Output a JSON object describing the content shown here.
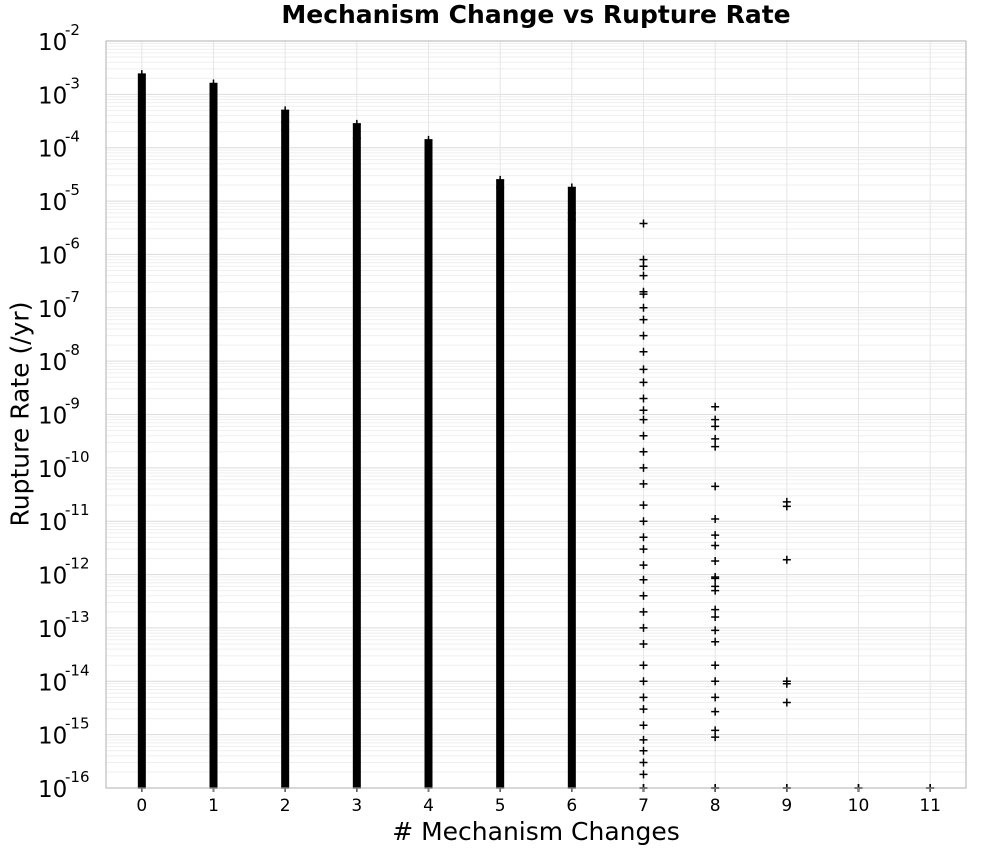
{
  "chart_data": {
    "type": "scatter",
    "title": "Mechanism Change vs Rupture Rate",
    "xlabel": "# Mechanism Changes",
    "ylabel": "Rupture Rate (/yr)",
    "x_ticks": [
      "0",
      "1",
      "2",
      "3",
      "4",
      "5",
      "6",
      "7",
      "8",
      "9",
      "10",
      "11"
    ],
    "xlim": [
      -0.5,
      11.5
    ],
    "y_scale": "log",
    "ylim": [
      1e-16,
      0.01
    ],
    "y_tick_labels": [
      {
        "base": "10",
        "exp": "-16"
      },
      {
        "base": "10",
        "exp": "-15"
      },
      {
        "base": "10",
        "exp": "-14"
      },
      {
        "base": "10",
        "exp": "-13"
      },
      {
        "base": "10",
        "exp": "-12"
      },
      {
        "base": "10",
        "exp": "-11"
      },
      {
        "base": "10",
        "exp": "-10"
      },
      {
        "base": "10",
        "exp": "-9"
      },
      {
        "base": "10",
        "exp": "-8"
      },
      {
        "base": "10",
        "exp": "-7"
      },
      {
        "base": "10",
        "exp": "-6"
      },
      {
        "base": "10",
        "exp": "-5"
      },
      {
        "base": "10",
        "exp": "-4"
      },
      {
        "base": "10",
        "exp": "-3"
      },
      {
        "base": "10",
        "exp": "-2"
      }
    ],
    "grid": true,
    "marker": "plus",
    "marker_color": "#000000",
    "columns": [
      {
        "x": 0,
        "max": 0.0024,
        "min": 1e-16,
        "dense_down_to": 1e-16,
        "outliers": []
      },
      {
        "x": 1,
        "max": 0.0016,
        "min": 1e-16,
        "dense_down_to": 1e-16,
        "outliers": [
          0.0006,
          0.0004
        ]
      },
      {
        "x": 2,
        "max": 0.0005,
        "min": 1e-16,
        "dense_down_to": 1e-16,
        "outliers": [
          0.0003,
          0.00022
        ]
      },
      {
        "x": 3,
        "max": 0.00028,
        "min": 1e-16,
        "dense_down_to": 1e-16,
        "outliers": [
          0.00015
        ]
      },
      {
        "x": 4,
        "max": 0.00014,
        "min": 1e-16,
        "dense_down_to": 1e-16,
        "outliers": [
          0.0001
        ]
      },
      {
        "x": 5,
        "max": 2.5e-05,
        "min": 1e-16,
        "dense_down_to": 1e-16,
        "outliers": [
          1.8e-05
        ]
      },
      {
        "x": 6,
        "max": 1.8e-05,
        "min": 1e-16,
        "dense_down_to": 1e-16,
        "outliers": [
          6e-06,
          4.5e-06
        ]
      },
      {
        "x": 7,
        "max": 3.8e-06,
        "min": 1e-16,
        "dense_down_to": null,
        "outliers": [
          8e-07,
          6e-07,
          4e-07,
          2e-07,
          1.8e-07,
          1e-07,
          6e-08,
          3e-08,
          1.5e-08,
          7e-09,
          4e-09,
          2e-09,
          1.2e-09,
          8e-10,
          4e-10,
          2e-10,
          1e-10,
          5e-11,
          2e-11,
          1e-11,
          5e-12,
          3e-12,
          1.5e-12,
          8e-13,
          4e-13,
          2e-13,
          1e-13,
          5e-14,
          2e-14,
          1e-14,
          5e-15,
          3e-15,
          1.5e-15,
          8e-16,
          5e-16,
          3e-16,
          1.8e-16,
          1e-16
        ]
      },
      {
        "x": 8,
        "max": 1.4e-09,
        "min": 1e-16,
        "dense_down_to": null,
        "outliers": [
          8e-10,
          6e-10,
          3.5e-10,
          2.5e-10,
          4.5e-11,
          1.1e-11,
          5.5e-12,
          3.5e-12,
          1.8e-12,
          9e-13,
          8.5e-13,
          6e-13,
          5e-13,
          2.2e-13,
          1.6e-13,
          9e-14,
          5.5e-14,
          2e-14,
          1e-14,
          5e-15,
          2.7e-15,
          1.2e-15,
          9e-16,
          1e-16
        ]
      },
      {
        "x": 9,
        "max": 2.3e-11,
        "min": 1e-16,
        "dense_down_to": null,
        "outliers": [
          1.9e-11,
          1.9e-12,
          1e-14,
          9e-15,
          4e-15,
          1e-16
        ]
      },
      {
        "x": 10,
        "max": 1e-16,
        "min": 1e-16,
        "dense_down_to": null,
        "outliers": []
      },
      {
        "x": 11,
        "max": 1e-16,
        "min": 1e-16,
        "dense_down_to": null,
        "outliers": []
      }
    ]
  }
}
